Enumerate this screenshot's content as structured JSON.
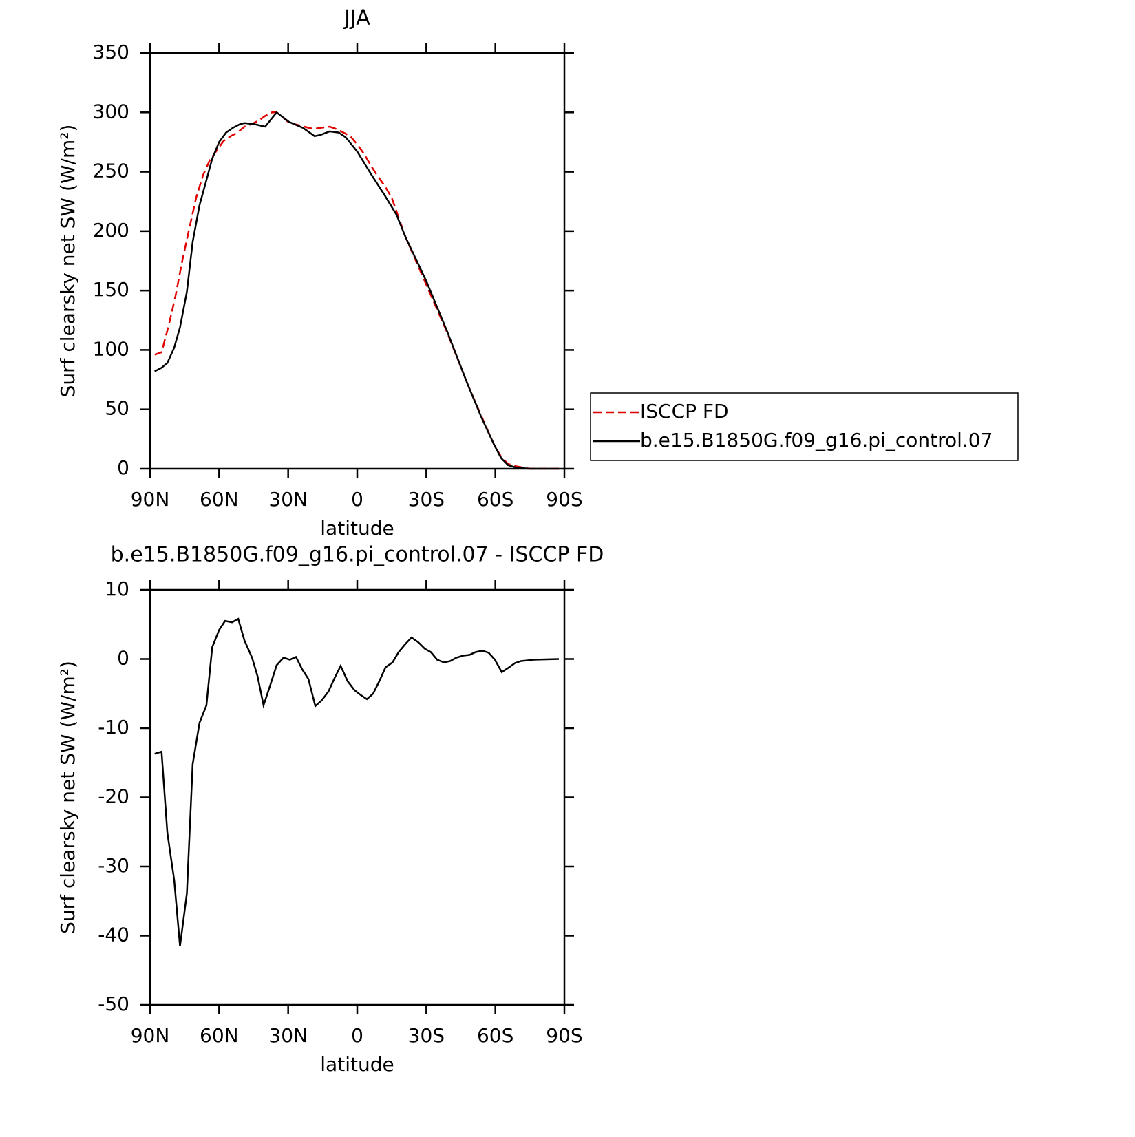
{
  "chart_data": [
    {
      "type": "line",
      "title": "JJA",
      "x_label": "latitude",
      "y_label": "Surf clearsky net SW (W/m²)",
      "xlim": [
        90,
        -90
      ],
      "xticks": [
        {
          "value": 90,
          "label": "90N"
        },
        {
          "value": 60,
          "label": "60N"
        },
        {
          "value": 30,
          "label": "30N"
        },
        0,
        {
          "value": -30,
          "label": "30S"
        },
        {
          "value": -60,
          "label": "60S"
        },
        {
          "value": -90,
          "label": "90S"
        }
      ],
      "ylim": [
        0,
        350
      ],
      "yticks": [
        0,
        50,
        100,
        150,
        200,
        250,
        300,
        350
      ],
      "legend": "right",
      "series": [
        {
          "name": "ISCCP FD",
          "color": "#e00000",
          "dash": "dashed",
          "x": [
            88,
            85,
            82,
            79,
            76,
            73,
            70,
            67,
            64,
            61,
            58,
            55,
            52,
            49,
            46,
            43,
            40,
            37,
            35,
            33,
            30,
            27,
            23,
            19,
            16,
            12,
            9,
            6,
            3,
            0,
            -3,
            -6,
            -9,
            -12,
            -15,
            -21,
            -30,
            -39,
            -48,
            -54,
            -59.5,
            -62.5,
            -65.5,
            -69,
            -75,
            -87.6
          ],
          "values": [
            96,
            98,
            120,
            145,
            175,
            202,
            228,
            247,
            260,
            268,
            276,
            280,
            283,
            288,
            290,
            293,
            297,
            300,
            300,
            297,
            292,
            290,
            288,
            286,
            287,
            288,
            286,
            283,
            280,
            273,
            265,
            255,
            246,
            238,
            228,
            195,
            155,
            115,
            71,
            44,
            20,
            10,
            4,
            2,
            0,
            0
          ]
        },
        {
          "name": "b.e15.B1850G.f09_g16.pi_control.07",
          "color": "#000000",
          "dash": "solid",
          "x": [
            88,
            85,
            82.5,
            79.5,
            77,
            74,
            71.5,
            68.5,
            65.5,
            63,
            60,
            57,
            54,
            51,
            49,
            44.5,
            40,
            35,
            29.6,
            23.6,
            18.5,
            16,
            12,
            8,
            5,
            0,
            -6,
            -12,
            -17,
            -21,
            -30,
            -39,
            -48,
            -54,
            -59.5,
            -62.5,
            -65.5,
            -69,
            -75,
            -87.6
          ],
          "values": [
            82,
            85,
            89,
            102,
            119,
            149,
            191,
            222,
            243,
            261,
            275,
            283,
            287,
            290,
            291,
            290,
            288,
            300,
            292,
            287,
            280,
            281,
            284,
            283,
            279,
            267,
            248,
            230,
            214,
            195,
            158,
            116,
            71,
            43,
            20,
            9,
            3,
            1,
            0,
            0
          ]
        }
      ]
    },
    {
      "type": "line",
      "title": "b.e15.B1850G.f09_g16.pi_control.07 - ISCCP FD",
      "x_label": "latitude",
      "y_label": "Surf clearsky net SW (W/m²)",
      "xlim": [
        90,
        -90
      ],
      "xticks": [
        {
          "value": 90,
          "label": "90N"
        },
        {
          "value": 60,
          "label": "60N"
        },
        {
          "value": 30,
          "label": "30N"
        },
        0,
        {
          "value": -30,
          "label": "30S"
        },
        {
          "value": -60,
          "label": "60S"
        },
        {
          "value": -90,
          "label": "90S"
        }
      ],
      "ylim": [
        -50,
        10
      ],
      "yticks": [
        10,
        0,
        -10,
        -20,
        -30,
        -40,
        -50
      ],
      "series": [
        {
          "color": "#000000",
          "dash": "solid",
          "x": [
            88,
            85,
            82.5,
            79.5,
            77,
            74,
            71.5,
            68.5,
            65.5,
            63,
            60,
            57.4,
            54.4,
            51.7,
            49,
            45.7,
            43.3,
            40.7,
            37.7,
            35,
            32,
            29.3,
            26.6,
            23.9,
            21.2,
            18.2,
            15.5,
            12.5,
            9.9,
            7.2,
            4.2,
            1.2,
            -1.5,
            -4.2,
            -6.9,
            -9.6,
            -12.3,
            -15.3,
            -18,
            -21,
            -23.6,
            -26.6,
            -29.3,
            -32,
            -34.7,
            -37.7,
            -40.4,
            -43.1,
            -46.1,
            -48.8,
            -51.4,
            -54.4,
            -57.1,
            -59.8,
            -62.8,
            -65.5,
            -68.5,
            -71.2,
            -76.6,
            -87.6
          ],
          "values": [
            -13.7,
            -13.4,
            -25.1,
            -32,
            -41.5,
            -33.9,
            -15.2,
            -9.2,
            -6.7,
            1.7,
            4.2,
            5.5,
            5.3,
            5.8,
            2.7,
            0.2,
            -2.5,
            -6.7,
            -3.7,
            -0.9,
            0.2,
            -0.1,
            0.3,
            -1.5,
            -2.9,
            -6.8,
            -6,
            -4.7,
            -2.8,
            -1,
            -3.2,
            -4.5,
            -5.2,
            -5.8,
            -5,
            -3.2,
            -1.2,
            -0.5,
            1,
            2.2,
            3.1,
            2.4,
            1.5,
            1,
            -0.1,
            -0.5,
            -0.3,
            0.2,
            0.5,
            0.6,
            1,
            1.2,
            0.9,
            -0.1,
            -1.9,
            -1.3,
            -0.6,
            -0.3,
            -0.1,
            0
          ]
        }
      ]
    }
  ]
}
